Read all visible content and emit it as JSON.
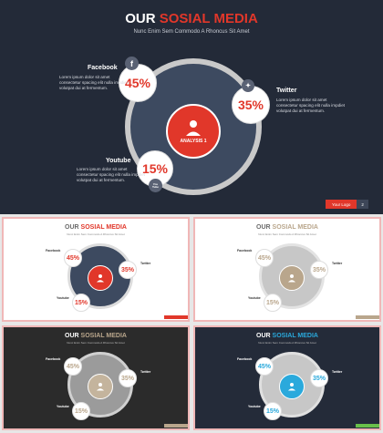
{
  "title": {
    "prefix": "OUR",
    "accent": "SOSIAL MEDIA"
  },
  "subtitle": "Nunc Enim Sem Commodo A Rhoncus Sit Amet",
  "center_label": "ANALYSIS 1",
  "body_text": "Lorem ipsum dolor sit amet\nconsectetur spacing elit nulla impdiet\nvolutpat dui at fermentum.",
  "items": {
    "facebook": {
      "label": "Facebook",
      "percent": "45%"
    },
    "twitter": {
      "label": "Twitter",
      "percent": "35%"
    },
    "youtube": {
      "label": "Youtube",
      "percent": "15%"
    }
  },
  "youtube_icon_text": "You\nTube",
  "logo": {
    "text": "Your Logo",
    "number": "2"
  },
  "icons": [
    "facebook-icon",
    "twitter-icon",
    "youtube-icon",
    "user-icon"
  ],
  "themes": {
    "dark_red": {
      "bg": "#232a38",
      "accent": "#e1372a",
      "ring": "#c9c9c9",
      "disc": "#3d4a60"
    },
    "light_red": {
      "bg": "#ffffff",
      "accent": "#e1372a",
      "ring": "#dcdcdc",
      "disc": "#3d4a60"
    },
    "light_beige": {
      "bg": "#ffffff",
      "accent": "#b9a68c",
      "ring": "#dcdcdc",
      "disc": "#c7c7c7"
    },
    "black_beige": {
      "bg": "#2b2b2b",
      "accent": "#b9a68c",
      "ring": "#d0d0d0",
      "disc": "#9b9b9b"
    },
    "navy_blue": {
      "bg": "#242b39",
      "accent": "#2aa9dc",
      "ring": "#c9c9c9",
      "disc": "#c7c7c7"
    }
  }
}
